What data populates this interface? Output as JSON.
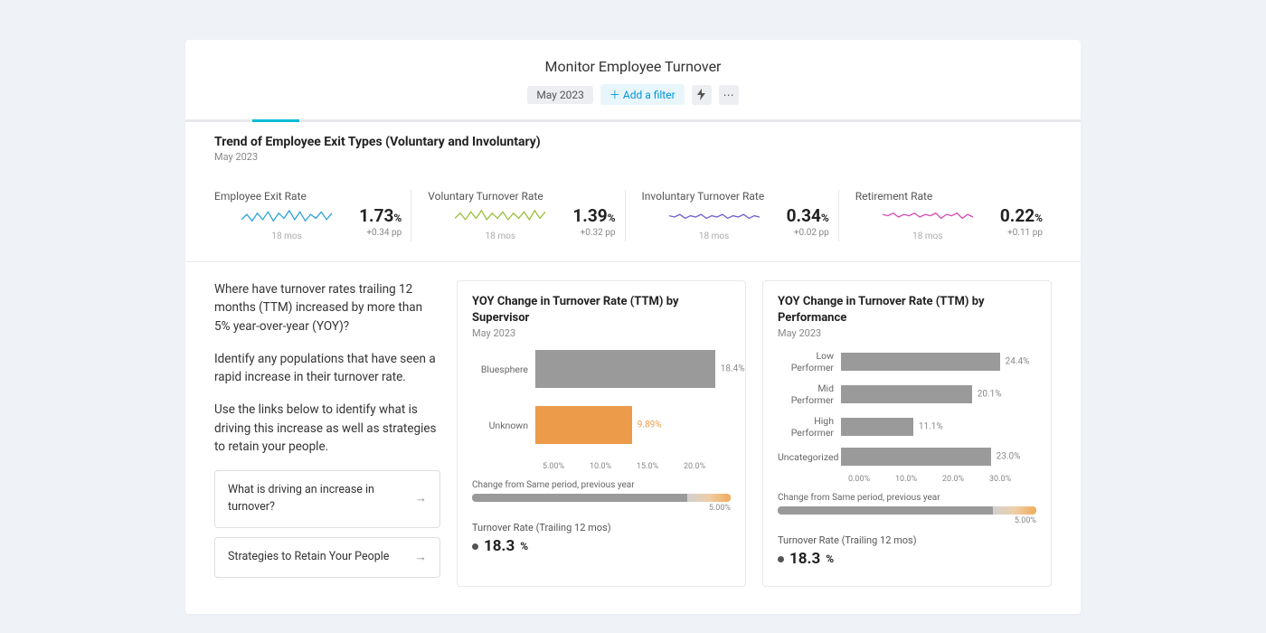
{
  "page": {
    "title": "Monitor Employee Turnover",
    "period_chip": "May 2023",
    "add_filter": "Add a filter"
  },
  "trend": {
    "title": "Trend of Employee Exit Types (Voluntary and Involuntary)",
    "subtitle": "May 2023",
    "period_label": "18 mos",
    "kpis": [
      {
        "label": "Employee Exit Rate",
        "value": "1.73",
        "delta": "+0.34 pp",
        "color": "#2ea3d6",
        "spark": [
          5,
          9,
          4,
          10,
          5,
          11,
          4,
          10,
          6,
          12,
          5,
          11,
          4,
          9,
          6,
          11,
          5,
          10
        ]
      },
      {
        "label": "Voluntary Turnover Rate",
        "value": "1.39",
        "delta": "+0.32 pp",
        "color": "#9bbf3b",
        "spark": [
          6,
          10,
          5,
          11,
          6,
          12,
          5,
          10,
          6,
          11,
          5,
          10,
          6,
          11,
          5,
          12,
          6,
          11
        ]
      },
      {
        "label": "Involuntary Turnover Rate",
        "value": "0.34",
        "delta": "+0.02 pp",
        "color": "#6a5bd0",
        "spark": [
          8,
          7,
          9,
          6,
          8,
          7,
          9,
          6,
          8,
          7,
          9,
          6,
          8,
          7,
          9,
          6,
          8,
          7
        ]
      },
      {
        "label": "Retirement Rate",
        "value": "0.22",
        "delta": "+0.11 pp",
        "color": "#d646b0",
        "spark": [
          9,
          8,
          10,
          7,
          9,
          8,
          10,
          7,
          9,
          8,
          10,
          6,
          9,
          8,
          10,
          6,
          9,
          7
        ]
      }
    ]
  },
  "narrative": {
    "p1": "Where have turnover rates trailing 12 months (TTM) increased by more than 5% year-over-year (YOY)?",
    "p2": "Identify any populations that have seen a rapid increase in their turnover rate.",
    "p3": "Use the links below to identify what is driving this increase as well as strategies to retain your people.",
    "link1": "What is driving an increase in turnover?",
    "link2": "Strategies to Retain Your People"
  },
  "chart_supervisor": {
    "title": "YOY Change in Turnover Rate (TTM) by Supervisor",
    "subtitle": "May 2023",
    "xmax": 20,
    "ticks": [
      "5.00%",
      "10.0%",
      "15.0%",
      "20.0%"
    ],
    "bars": [
      {
        "label": "Bluesphere",
        "value": 18.4,
        "text": "18.4%",
        "color": "#9a9a9a",
        "height": 42
      },
      {
        "label": "Unknown",
        "value": 9.89,
        "text": "9.89%",
        "color": "#ec9b4a",
        "height": 42,
        "text_color": "#ec9b4a"
      }
    ],
    "legend": "Change from Same period, previous year",
    "grad_max": "5.00%",
    "metric_label": "Turnover Rate (Trailing 12 mos)",
    "metric_value": "18.3"
  },
  "chart_performance": {
    "title": "YOY Change in Turnover Rate (TTM) by Performance",
    "subtitle": "May 2023",
    "xmax": 30,
    "ticks": [
      "0.00%",
      "10.0%",
      "20.0%",
      "30.0%"
    ],
    "bars": [
      {
        "label": "Low Performer",
        "value": 24.4,
        "text": "24.4%",
        "color": "#9a9a9a"
      },
      {
        "label": "Mid Performer",
        "value": 20.1,
        "text": "20.1%",
        "color": "#9a9a9a"
      },
      {
        "label": "High Performer",
        "value": 11.1,
        "text": "11.1%",
        "color": "#9a9a9a"
      },
      {
        "label": "Uncategorized",
        "value": 23.0,
        "text": "23.0%",
        "color": "#9a9a9a"
      }
    ],
    "legend": "Change from Same period, previous year",
    "grad_max": "5.00%",
    "metric_label": "Turnover Rate (Trailing 12 mos)",
    "metric_value": "18.3"
  }
}
